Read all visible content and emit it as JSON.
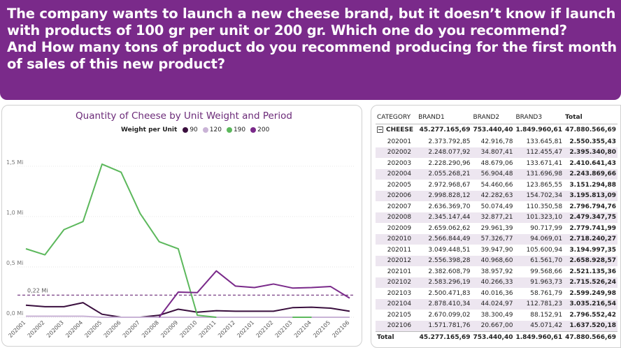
{
  "banner": {
    "line1": "The company wants to launch a new cheese brand, but it doesn’t know if launch it",
    "line2": "with products of 100 gr per unit or 200 gr. Which one do you recommend?",
    "line3": "And How many tons of product do you recommend producing for the first month",
    "line4": "of sales of this new product?"
  },
  "chart_data": {
    "type": "line",
    "title": "Quantity of Cheese by Unit Weight and Period",
    "legend_title": "Weight per Unit",
    "legend_position": "top",
    "x": [
      "202001",
      "202002",
      "202003",
      "202004",
      "202005",
      "202006",
      "202007",
      "202008",
      "202009",
      "202010",
      "202011",
      "202012",
      "202101",
      "202102",
      "202103",
      "202104",
      "202105",
      "202106"
    ],
    "y_ticks": [
      "0,0 Mi",
      "0,5 Mi",
      "1,0 Mi",
      "1,5 Mi"
    ],
    "ylim": [
      0,
      1.7
    ],
    "reference_line": {
      "value": 0.22,
      "label": "0,22 Mi"
    },
    "series": [
      {
        "name": "90",
        "color": "#3a0f3e",
        "values": [
          0.12,
          0.105,
          0.105,
          0.145,
          0.03,
          0.0,
          0.0,
          0.02,
          0.08,
          0.05,
          0.065,
          0.06,
          0.06,
          0.06,
          0.095,
          0.1,
          0.09,
          0.06
        ]
      },
      {
        "name": "120",
        "color": "#c9b3d6",
        "values": [
          0.01,
          0.01,
          0.01,
          0.01,
          0.0,
          0.0,
          0.0,
          0.0,
          0.0,
          0.0,
          0.0,
          0.0,
          0.0,
          0.0,
          0.0,
          0.0,
          0.0,
          0.0
        ]
      },
      {
        "name": "190",
        "color": "#5cb85c",
        "values": [
          0.68,
          0.62,
          0.87,
          0.95,
          1.52,
          1.44,
          1.03,
          0.75,
          0.68,
          0.02,
          0.0,
          null,
          null,
          null,
          0.0,
          0.0,
          null,
          null
        ]
      },
      {
        "name": "200",
        "color": "#7a2a8a",
        "values": [
          null,
          null,
          null,
          null,
          null,
          null,
          null,
          0.0,
          0.25,
          0.245,
          0.46,
          0.31,
          0.295,
          0.33,
          0.29,
          0.295,
          0.305,
          0.19
        ]
      }
    ]
  },
  "table": {
    "headers": [
      "CATEGORY",
      "BRAND1",
      "BRAND2",
      "BRAND3",
      "Total"
    ],
    "group": {
      "label": "CHEESE",
      "values": [
        "45.277.165,69",
        "753.440,40",
        "1.849.960,61",
        "47.880.566,69"
      ]
    },
    "rows": [
      [
        "202001",
        "2.373.792,85",
        "42.916,78",
        "133.645,81",
        "2.550.355,43"
      ],
      [
        "202002",
        "2.248.077,92",
        "34.807,41",
        "112.455,47",
        "2.395.340,80"
      ],
      [
        "202003",
        "2.228.290,96",
        "48.679,06",
        "133.671,41",
        "2.410.641,43"
      ],
      [
        "202004",
        "2.055.268,21",
        "56.904,48",
        "131.696,98",
        "2.243.869,66"
      ],
      [
        "202005",
        "2.972.968,67",
        "54.460,66",
        "123.865,55",
        "3.151.294,88"
      ],
      [
        "202006",
        "2.998.828,12",
        "42.282,63",
        "154.702,34",
        "3.195.813,09"
      ],
      [
        "202007",
        "2.636.369,70",
        "50.074,49",
        "110.350,58",
        "2.796.794,76"
      ],
      [
        "202008",
        "2.345.147,44",
        "32.877,21",
        "101.323,10",
        "2.479.347,75"
      ],
      [
        "202009",
        "2.659.062,62",
        "29.961,39",
        "90.717,99",
        "2.779.741,99"
      ],
      [
        "202010",
        "2.566.844,49",
        "57.326,77",
        "94.069,01",
        "2.718.240,27"
      ],
      [
        "202011",
        "3.049.448,51",
        "39.947,90",
        "105.600,94",
        "3.194.997,35"
      ],
      [
        "202012",
        "2.556.398,28",
        "40.968,60",
        "61.561,70",
        "2.658.928,57"
      ],
      [
        "202101",
        "2.382.608,79",
        "38.957,92",
        "99.568,66",
        "2.521.135,36"
      ],
      [
        "202102",
        "2.583.296,19",
        "40.266,33",
        "91.963,73",
        "2.715.526,24"
      ],
      [
        "202103",
        "2.500.471,83",
        "40.016,36",
        "58.761,79",
        "2.599.249,98"
      ],
      [
        "202104",
        "2.878.410,34",
        "44.024,97",
        "112.781,23",
        "3.035.216,54"
      ],
      [
        "202105",
        "2.670.099,02",
        "38.300,49",
        "88.152,91",
        "2.796.552,42"
      ],
      [
        "202106",
        "1.571.781,76",
        "20.667,00",
        "45.071,42",
        "1.637.520,18"
      ]
    ],
    "total": {
      "label": "Total",
      "values": [
        "45.277.165,69",
        "753.440,40",
        "1.849.960,61",
        "47.880.566,69"
      ]
    }
  }
}
